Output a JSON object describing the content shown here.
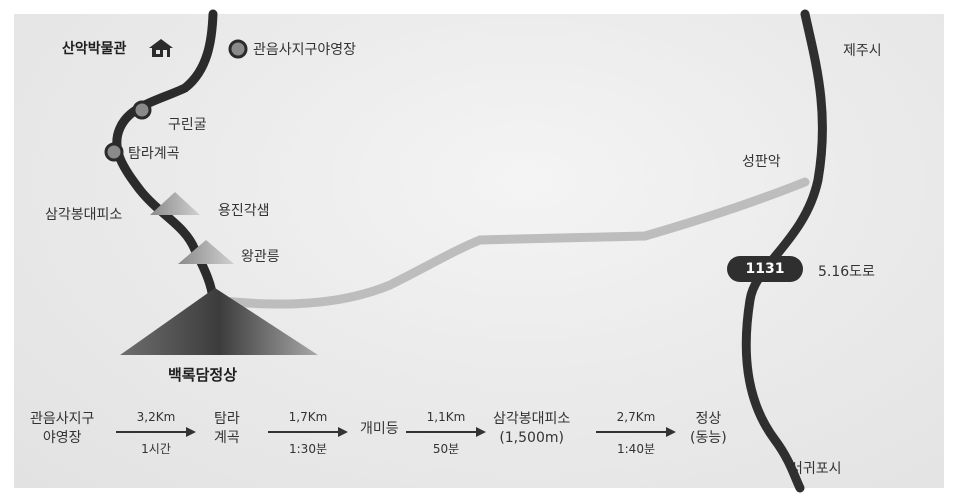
{
  "map": {
    "places": {
      "sanak_museum": "산악박물관",
      "gwaneumsa_campsite": "관음사지구야영장",
      "gurin_cave": "구린굴",
      "tamra_valley": "탐라계곡",
      "samgak_shelter": "삼각봉대피소",
      "yongjin_cave": "용진각샘",
      "wanggwan_peak": "왕관릉",
      "summit": "백록담정상",
      "seongpanak": "성판악",
      "jeju_city": "제주시",
      "seogwipo_city": "서귀포시"
    },
    "road": {
      "number": "1131",
      "name": "5.16도로"
    },
    "colors": {
      "trail_dark": "#2b2b2b",
      "trail_gray": "#bcbcbc",
      "marker": "#8a8a8a"
    }
  },
  "course": {
    "stops": [
      {
        "line1": "관음사지구",
        "line2": "야영장"
      },
      {
        "line1": "탐라",
        "line2": "계곡"
      },
      {
        "line1": "개미등",
        "line2": ""
      },
      {
        "line1": "삼각봉대피소",
        "line2": "(1,500m)"
      },
      {
        "line1": "정상",
        "line2": "(동능)"
      }
    ],
    "segments": [
      {
        "distance": "3,2Km",
        "time": "1시간"
      },
      {
        "distance": "1,7Km",
        "time": "1:30분"
      },
      {
        "distance": "1,1Km",
        "time": "50분"
      },
      {
        "distance": "2,7Km",
        "time": "1:40분"
      }
    ]
  }
}
